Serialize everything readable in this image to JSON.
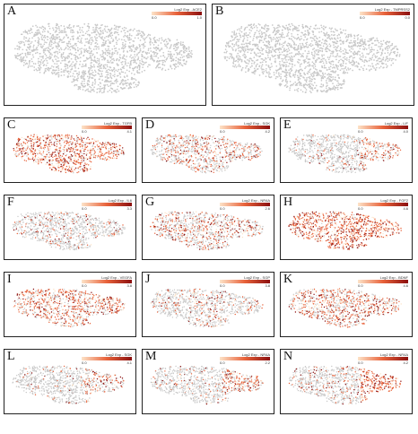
{
  "figure": {
    "panels": [
      {
        "letter": "A",
        "legend_title": "Log2 Exp - ACE2",
        "legend_min": "0.0",
        "legend_max": "1.0",
        "density": 0.0,
        "focus": "none"
      },
      {
        "letter": "B",
        "legend_title": "Log2 Exp - TMPRSS2",
        "legend_min": "0.0",
        "legend_max": "0.0",
        "density": 0.0,
        "focus": "none"
      },
      {
        "letter": "C",
        "legend_title": "Log2 Exp - TGFB",
        "legend_min": "0.0",
        "legend_max": "4.1",
        "density": 0.85,
        "focus": "all"
      },
      {
        "letter": "D",
        "legend_title": "Log2 Exp - SGK",
        "legend_min": "0.0",
        "legend_max": "4.2",
        "density": 0.45,
        "focus": "all"
      },
      {
        "letter": "E",
        "legend_title": "Log2 Exp - LIF",
        "legend_min": "0.0",
        "legend_max": "4.0",
        "density": 0.3,
        "focus": "right"
      },
      {
        "letter": "F",
        "legend_title": "Log2 Exp - IL6",
        "legend_min": "0.0",
        "legend_max": "3.3",
        "density": 0.2,
        "focus": "all"
      },
      {
        "letter": "G",
        "legend_title": "Log2 Exp - NR4A",
        "legend_min": "0.0",
        "legend_max": "2.6",
        "density": 0.45,
        "focus": "all"
      },
      {
        "letter": "H",
        "legend_title": "Log2 Exp - FGF2",
        "legend_min": "0.0",
        "legend_max": "4.6",
        "density": 0.95,
        "focus": "all"
      },
      {
        "letter": "I",
        "legend_title": "Log2 Exp - VEGFA",
        "legend_min": "0.0",
        "legend_max": "3.8",
        "density": 0.7,
        "focus": "all"
      },
      {
        "letter": "J",
        "legend_title": "Log2 Exp - SGP",
        "legend_min": "0.0",
        "legend_max": "3.8",
        "density": 0.25,
        "focus": "all"
      },
      {
        "letter": "K",
        "legend_title": "Log2 Exp - BDNF",
        "legend_min": "0.0",
        "legend_max": "4.6",
        "density": 0.65,
        "focus": "all"
      },
      {
        "letter": "L",
        "legend_title": "Log2 Exp - SGK",
        "legend_min": "0.0",
        "legend_max": "4.1",
        "density": 0.3,
        "focus": "right"
      },
      {
        "letter": "M",
        "legend_title": "Log2 Exp - NR4A",
        "legend_min": "0.0",
        "legend_max": "2.2",
        "density": 0.35,
        "focus": "right"
      },
      {
        "letter": "N",
        "legend_title": "Log2 Exp - NR4A",
        "legend_min": "0.0",
        "legend_max": "4.2",
        "density": 0.6,
        "focus": "right"
      }
    ]
  },
  "colors": {
    "background_cell": "#c8c8c8",
    "scale_low": "#fde3c8",
    "scale_mid": "#e8623a",
    "scale_high": "#8b0f0f",
    "border": "#222222"
  }
}
